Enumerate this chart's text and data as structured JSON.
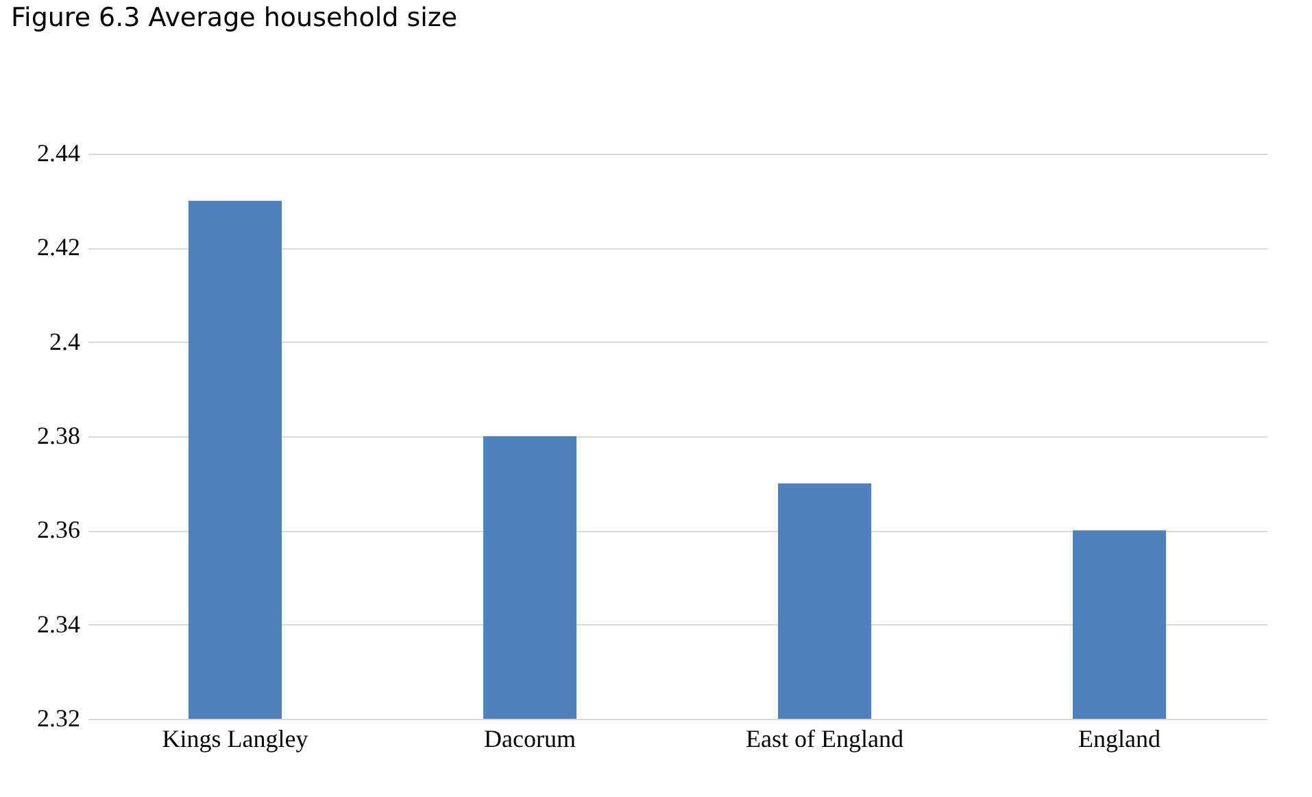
{
  "chart_data": {
    "type": "bar",
    "title": "Figure 6.3 Average household size",
    "categories": [
      "Kings Langley",
      "Dacorum",
      "East of England",
      "England"
    ],
    "values": [
      2.43,
      2.38,
      2.37,
      2.36
    ],
    "color": "#4f81bd",
    "ylim": [
      2.32,
      2.44
    ],
    "yticks": [
      2.32,
      2.34,
      2.36,
      2.38,
      2.4,
      2.42,
      2.44
    ],
    "grid": "y"
  }
}
